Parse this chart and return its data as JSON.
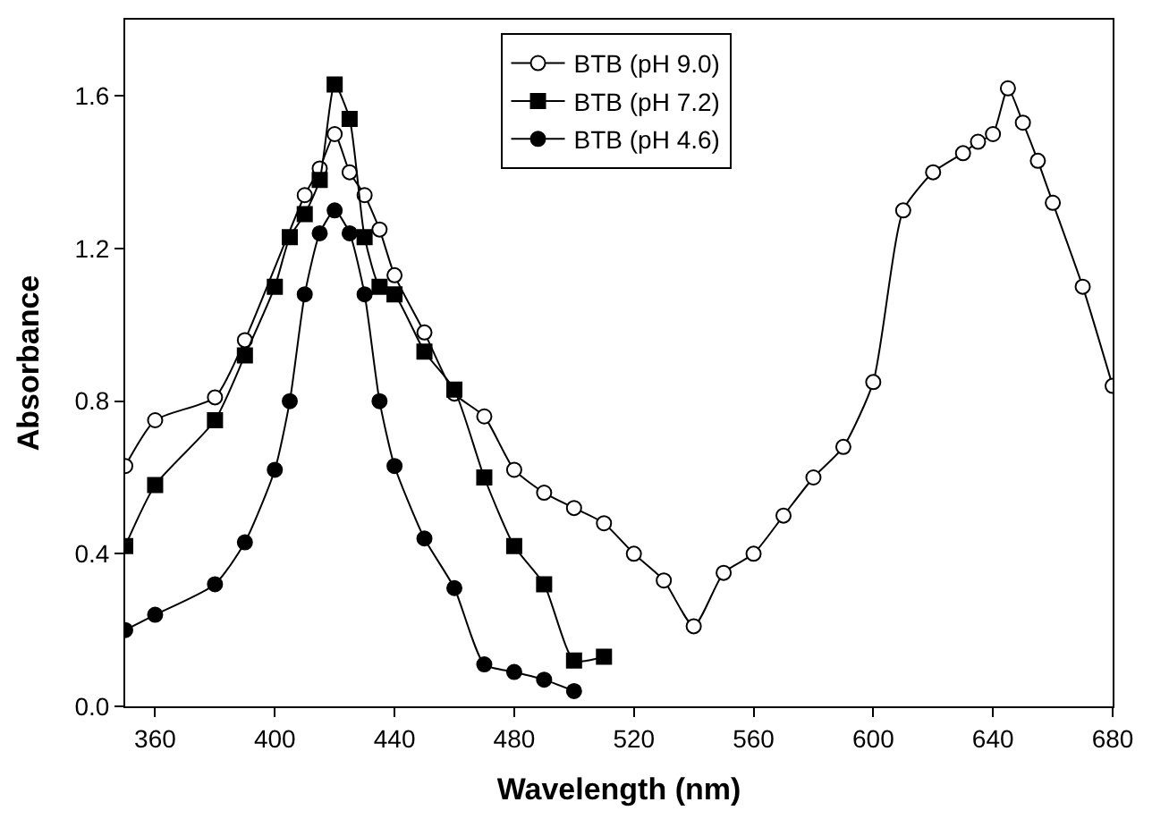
{
  "chart_data": {
    "type": "line",
    "xlabel": "Wavelength (nm)",
    "ylabel": "Absorbance",
    "xlim": [
      350,
      680
    ],
    "xticks": [
      360,
      400,
      440,
      480,
      520,
      560,
      600,
      640,
      680
    ],
    "ylim": [
      0,
      1.8
    ],
    "yticks": [
      {
        "value": 0,
        "label": "0.0"
      },
      0.4,
      0.8,
      1.2,
      1.6
    ],
    "legend": "top right",
    "line_style": "solid",
    "series": [
      {
        "name": "BTB (pH 9.0)",
        "color": "#000000",
        "marker": "circle-open",
        "x": [
          350,
          360,
          380,
          390,
          410,
          415,
          420,
          425,
          430,
          435,
          440,
          450,
          460,
          470,
          480,
          490,
          500,
          510,
          520,
          530,
          540,
          550,
          560,
          570,
          580,
          590,
          600,
          610,
          620,
          630,
          635,
          640,
          645,
          650,
          655,
          660,
          670,
          680
        ],
        "values": [
          0.63,
          0.75,
          0.81,
          0.96,
          1.34,
          1.41,
          1.5,
          1.4,
          1.34,
          1.25,
          1.13,
          0.98,
          0.82,
          0.76,
          0.62,
          0.56,
          0.52,
          0.48,
          0.4,
          0.33,
          0.21,
          0.35,
          0.4,
          0.5,
          0.6,
          0.68,
          0.85,
          1.3,
          1.4,
          1.45,
          1.48,
          1.5,
          1.62,
          1.53,
          1.43,
          1.32,
          1.1,
          0.84
        ]
      },
      {
        "name": "BTB (pH 7.2)",
        "color": "#000000",
        "marker": "square",
        "x": [
          350,
          360,
          380,
          390,
          400,
          405,
          410,
          415,
          420,
          425,
          430,
          435,
          440,
          450,
          460,
          470,
          480,
          490,
          500,
          510
        ],
        "values": [
          0.42,
          0.58,
          0.75,
          0.92,
          1.1,
          1.23,
          1.29,
          1.38,
          1.63,
          1.54,
          1.23,
          1.1,
          1.08,
          0.93,
          0.83,
          0.6,
          0.42,
          0.32,
          0.12,
          0.13
        ]
      },
      {
        "name": "BTB (pH 4.6)",
        "color": "#000000",
        "marker": "circle",
        "x": [
          350,
          360,
          380,
          390,
          400,
          405,
          410,
          415,
          420,
          425,
          430,
          435,
          440,
          450,
          460,
          470,
          480,
          490,
          500
        ],
        "values": [
          0.2,
          0.24,
          0.32,
          0.43,
          0.62,
          0.8,
          1.08,
          1.24,
          1.3,
          1.24,
          1.08,
          0.8,
          0.63,
          0.44,
          0.31,
          0.11,
          0.09,
          0.07,
          0.04
        ]
      }
    ]
  }
}
